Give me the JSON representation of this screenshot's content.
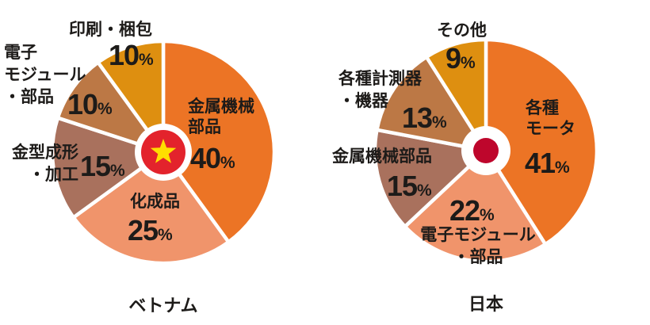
{
  "ui": {
    "percent_sign": "%"
  },
  "chart_data": [
    {
      "id": "vietnam",
      "type": "pie",
      "title": "ベトナム",
      "center_icon": "vietnam-flag",
      "start_angle_deg": 0,
      "direction": "clockwise",
      "legend_position": "labels-around-pie",
      "flag_colors": {
        "field": "#E3232C",
        "star": "#FFDE00",
        "ring": "#FFFFFF"
      },
      "slices": [
        {
          "label": "金属機械部品",
          "lines": [
            "金属機械",
            "部品"
          ],
          "value": 40,
          "color": "#EC7425"
        },
        {
          "label": "化成品",
          "lines": [
            "化成品"
          ],
          "value": 25,
          "color": "#F0946B"
        },
        {
          "label": "金型成形・加工",
          "lines": [
            "金型成形",
            "・加工"
          ],
          "value": 15,
          "color": "#A9715D"
        },
        {
          "label": "電子モジュール・部品",
          "lines": [
            "電子",
            "モジュール",
            "・部品"
          ],
          "value": 10,
          "color": "#BC7845"
        },
        {
          "label": "印刷・梱包",
          "lines": [
            "印刷・梱包"
          ],
          "value": 10,
          "color": "#DE8F10"
        }
      ]
    },
    {
      "id": "japan",
      "type": "pie",
      "title": "日本",
      "center_icon": "japan-flag",
      "start_angle_deg": 0,
      "direction": "clockwise",
      "legend_position": "labels-around-pie",
      "flag_colors": {
        "field": "#FFFFFF",
        "disc": "#BE062C"
      },
      "slices": [
        {
          "label": "各種モータ",
          "lines": [
            "各種",
            "モータ"
          ],
          "value": 41,
          "color": "#EC7425"
        },
        {
          "label": "電子モジュール・部品",
          "lines": [
            "電子モジュール",
            "・部品"
          ],
          "value": 22,
          "color": "#F0946B"
        },
        {
          "label": "金属機械部品",
          "lines": [
            "金属機械部品"
          ],
          "value": 15,
          "color": "#A9715D"
        },
        {
          "label": "各種計測器・機器",
          "lines": [
            "各種計測器",
            "・機器"
          ],
          "value": 13,
          "color": "#BC7845"
        },
        {
          "label": "その他",
          "lines": [
            "その他"
          ],
          "value": 9,
          "color": "#DE8F10"
        }
      ]
    }
  ]
}
